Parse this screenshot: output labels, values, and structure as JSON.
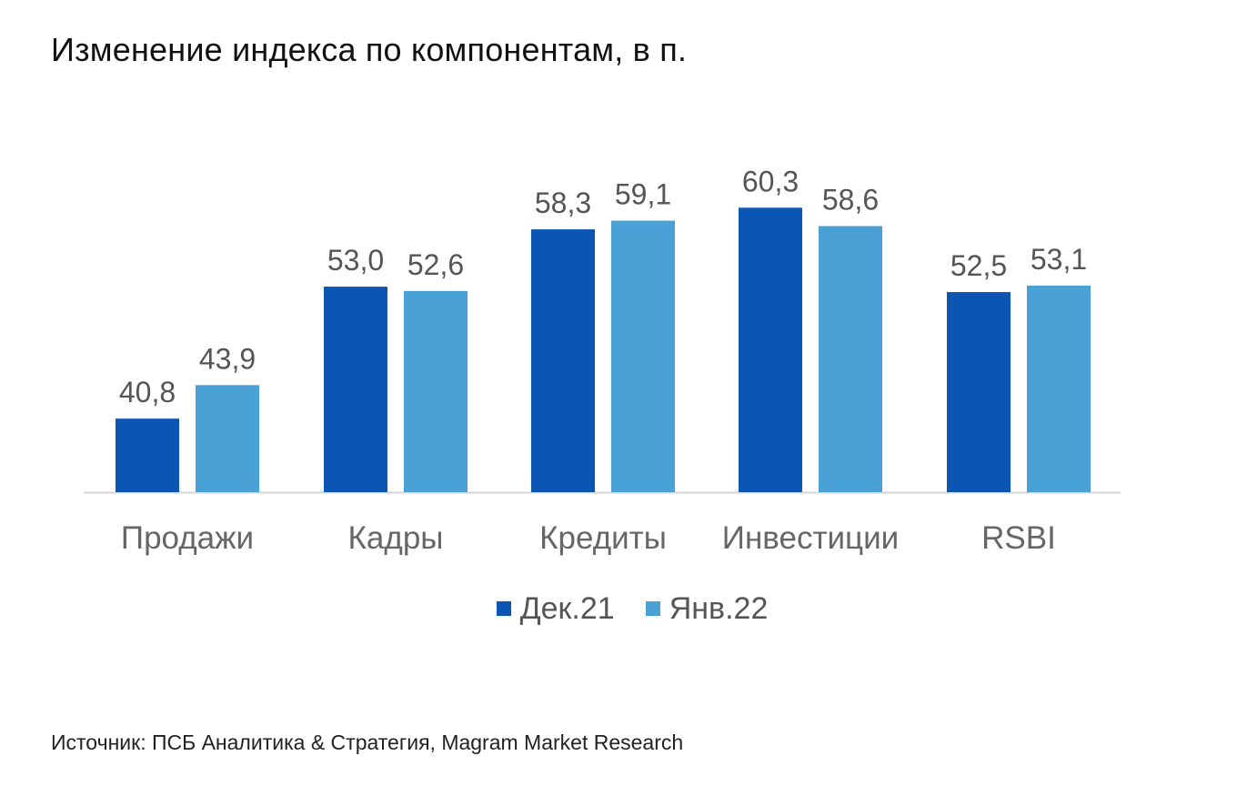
{
  "title": "Изменение индекса по компонентам, в п.",
  "source": "Источник: ПСБ Аналитика & Стратегия, Magram Market Research",
  "legend": [
    {
      "label": "Дек.21",
      "color": "#0b56b3"
    },
    {
      "label": "Янв.22",
      "color": "#4aa1d6"
    }
  ],
  "chart_data": {
    "type": "bar",
    "title": "Изменение индекса по компонентам, в п.",
    "xlabel": "",
    "ylabel": "",
    "categories": [
      "Продажи",
      "Кадры",
      "Кредиты",
      "Инвестиции",
      "RSBI"
    ],
    "series": [
      {
        "name": "Дек.21",
        "color": "#0b56b3",
        "values": [
          40.8,
          53.0,
          58.3,
          60.3,
          52.5
        ],
        "labels": [
          "40,8",
          "53,0",
          "58,3",
          "60,3",
          "52,5"
        ]
      },
      {
        "name": "Янв.22",
        "color": "#4aa1d6",
        "values": [
          43.9,
          52.6,
          59.1,
          58.6,
          53.1
        ],
        "labels": [
          "43,9",
          "52,6",
          "59,1",
          "58,6",
          "53,1"
        ]
      }
    ],
    "ylim": [
      34,
      61
    ],
    "grid": false,
    "legend_position": "bottom-center"
  }
}
